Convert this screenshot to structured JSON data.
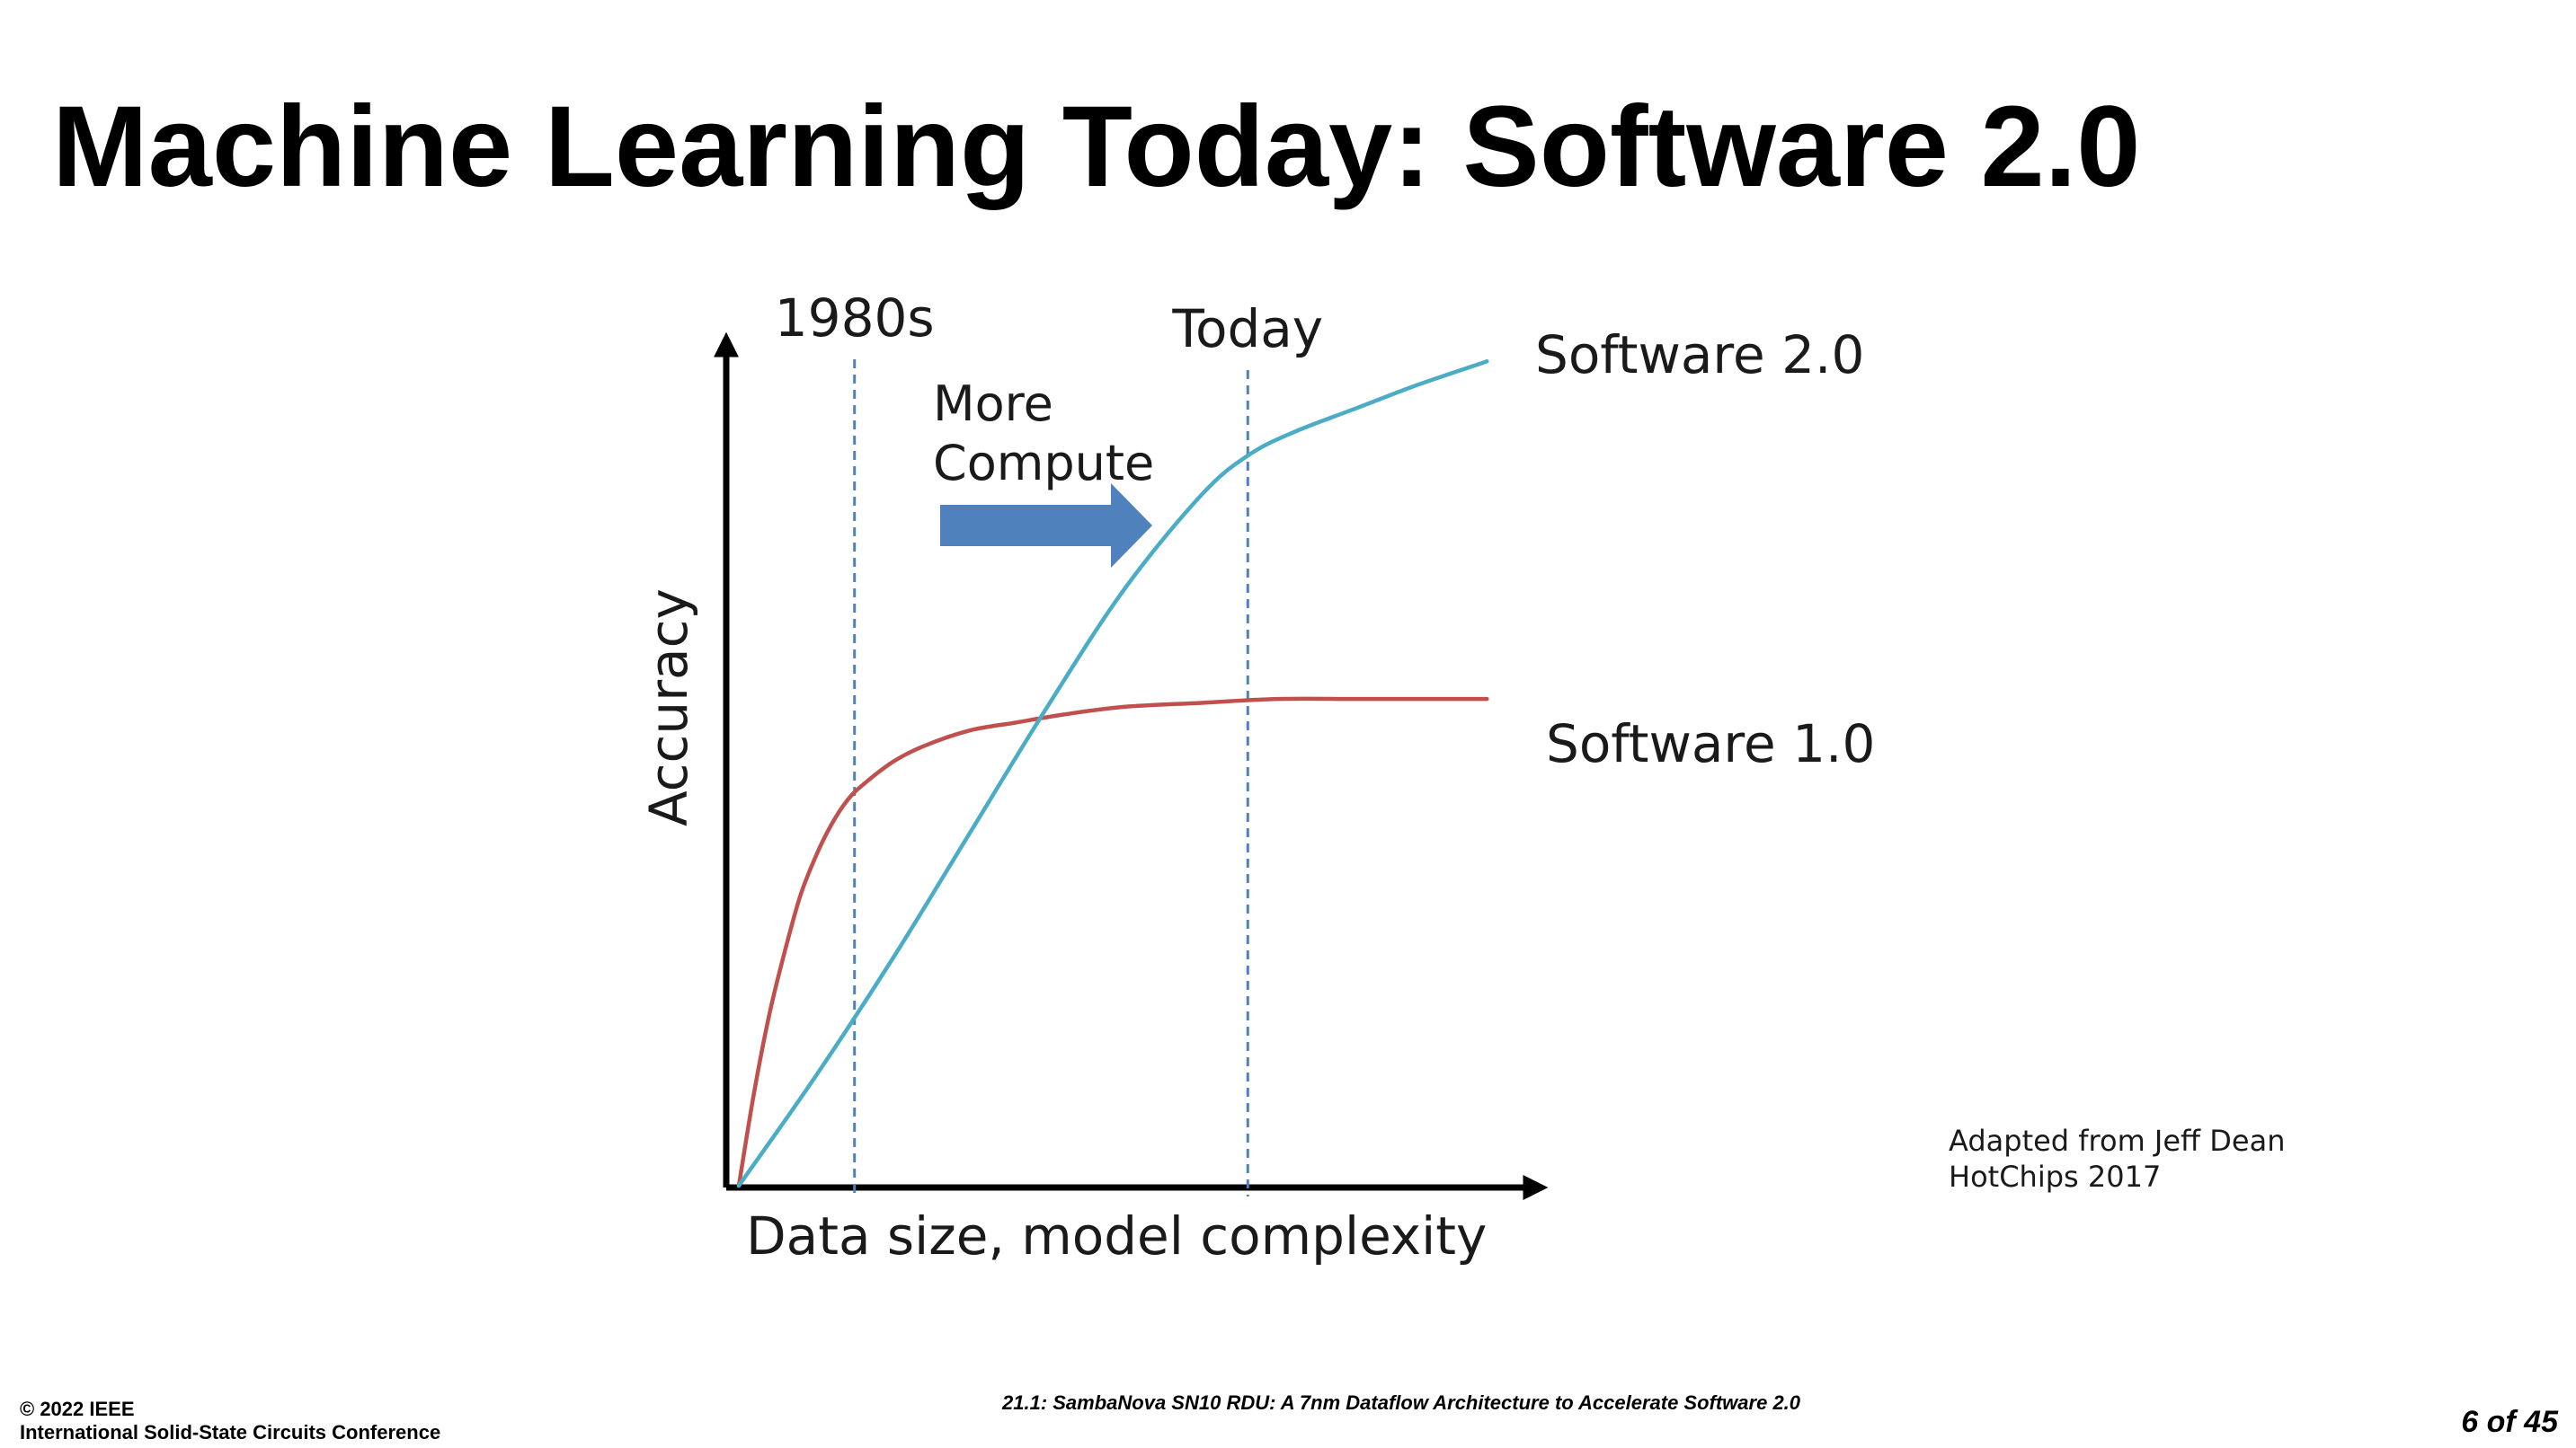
{
  "slide": {
    "title": "Machine Learning Today: Software 2.0"
  },
  "chart_data": {
    "type": "line",
    "xlabel": "Data size, model complexity",
    "ylabel": "Accuracy",
    "xlim": [
      0,
      100
    ],
    "ylim": [
      0,
      100
    ],
    "grid": false,
    "series": [
      {
        "name": "Software 1.0",
        "color": "#c0504d",
        "x": [
          0,
          2,
          4,
          6,
          8,
          10,
          12,
          14,
          16,
          20,
          24,
          30,
          36,
          42,
          50,
          60,
          70,
          80,
          90,
          97
        ],
        "y": [
          0,
          12,
          22,
          30,
          37,
          42,
          46,
          49,
          51,
          54,
          56,
          58,
          59,
          60,
          61,
          61.5,
          62,
          62,
          62,
          62
        ]
      },
      {
        "name": "Software 2.0",
        "color": "#4bacc6",
        "x": [
          0,
          10,
          20,
          30,
          40,
          50,
          60,
          66,
          72,
          80,
          88,
          97
        ],
        "y": [
          0,
          14,
          29,
          45,
          61,
          76,
          88,
          93,
          96,
          99,
          102,
          105
        ]
      }
    ],
    "markers": [
      {
        "label": "1980s",
        "x": 15
      },
      {
        "label": "Today",
        "x": 66
      }
    ],
    "annotations": [
      {
        "text_lines": [
          "More",
          "Compute"
        ],
        "arrow": "right",
        "arrow_color": "#4f81bd"
      }
    ]
  },
  "attribution": {
    "line1": "Adapted from Jeff Dean",
    "line2": "HotChips 2017"
  },
  "footer": {
    "copyright": "© 2022 IEEE",
    "conference": "International Solid-State Circuits Conference",
    "paper_title": "21.1: SambaNova SN10 RDU: A 7nm Dataflow Architecture to Accelerate Software 2.0",
    "page": "6 of 45"
  }
}
